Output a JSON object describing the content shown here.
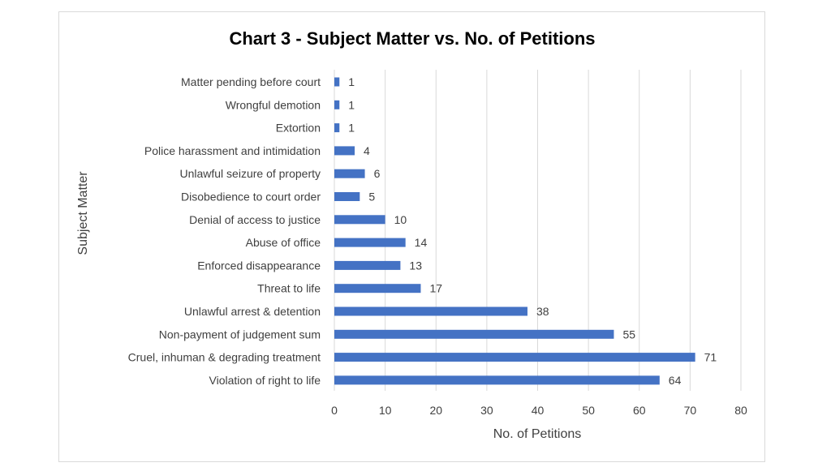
{
  "chart_data": {
    "type": "bar",
    "orientation": "horizontal",
    "title": "Chart 3 - Subject Matter vs. No. of Petitions",
    "xlabel": "No. of Petitions",
    "ylabel": "Subject Matter",
    "xlim": [
      0,
      80
    ],
    "xticks": [
      0,
      10,
      20,
      30,
      40,
      50,
      60,
      70,
      80
    ],
    "grid": true,
    "bar_color": "#4472C4",
    "categories": [
      "Matter pending before court",
      "Wrongful demotion",
      "Extortion",
      "Police harassment and intimidation",
      "Unlawful seizure of property",
      "Disobedience to court order",
      "Denial of access to justice",
      "Abuse of office",
      "Enforced disappearance",
      "Threat to life",
      "Unlawful arrest & detention",
      "Non-payment of judgement sum",
      "Cruel, inhuman & degrading treatment",
      "Violation of right to life"
    ],
    "values": [
      1,
      1,
      1,
      4,
      6,
      5,
      10,
      14,
      13,
      17,
      38,
      55,
      71,
      64
    ]
  }
}
